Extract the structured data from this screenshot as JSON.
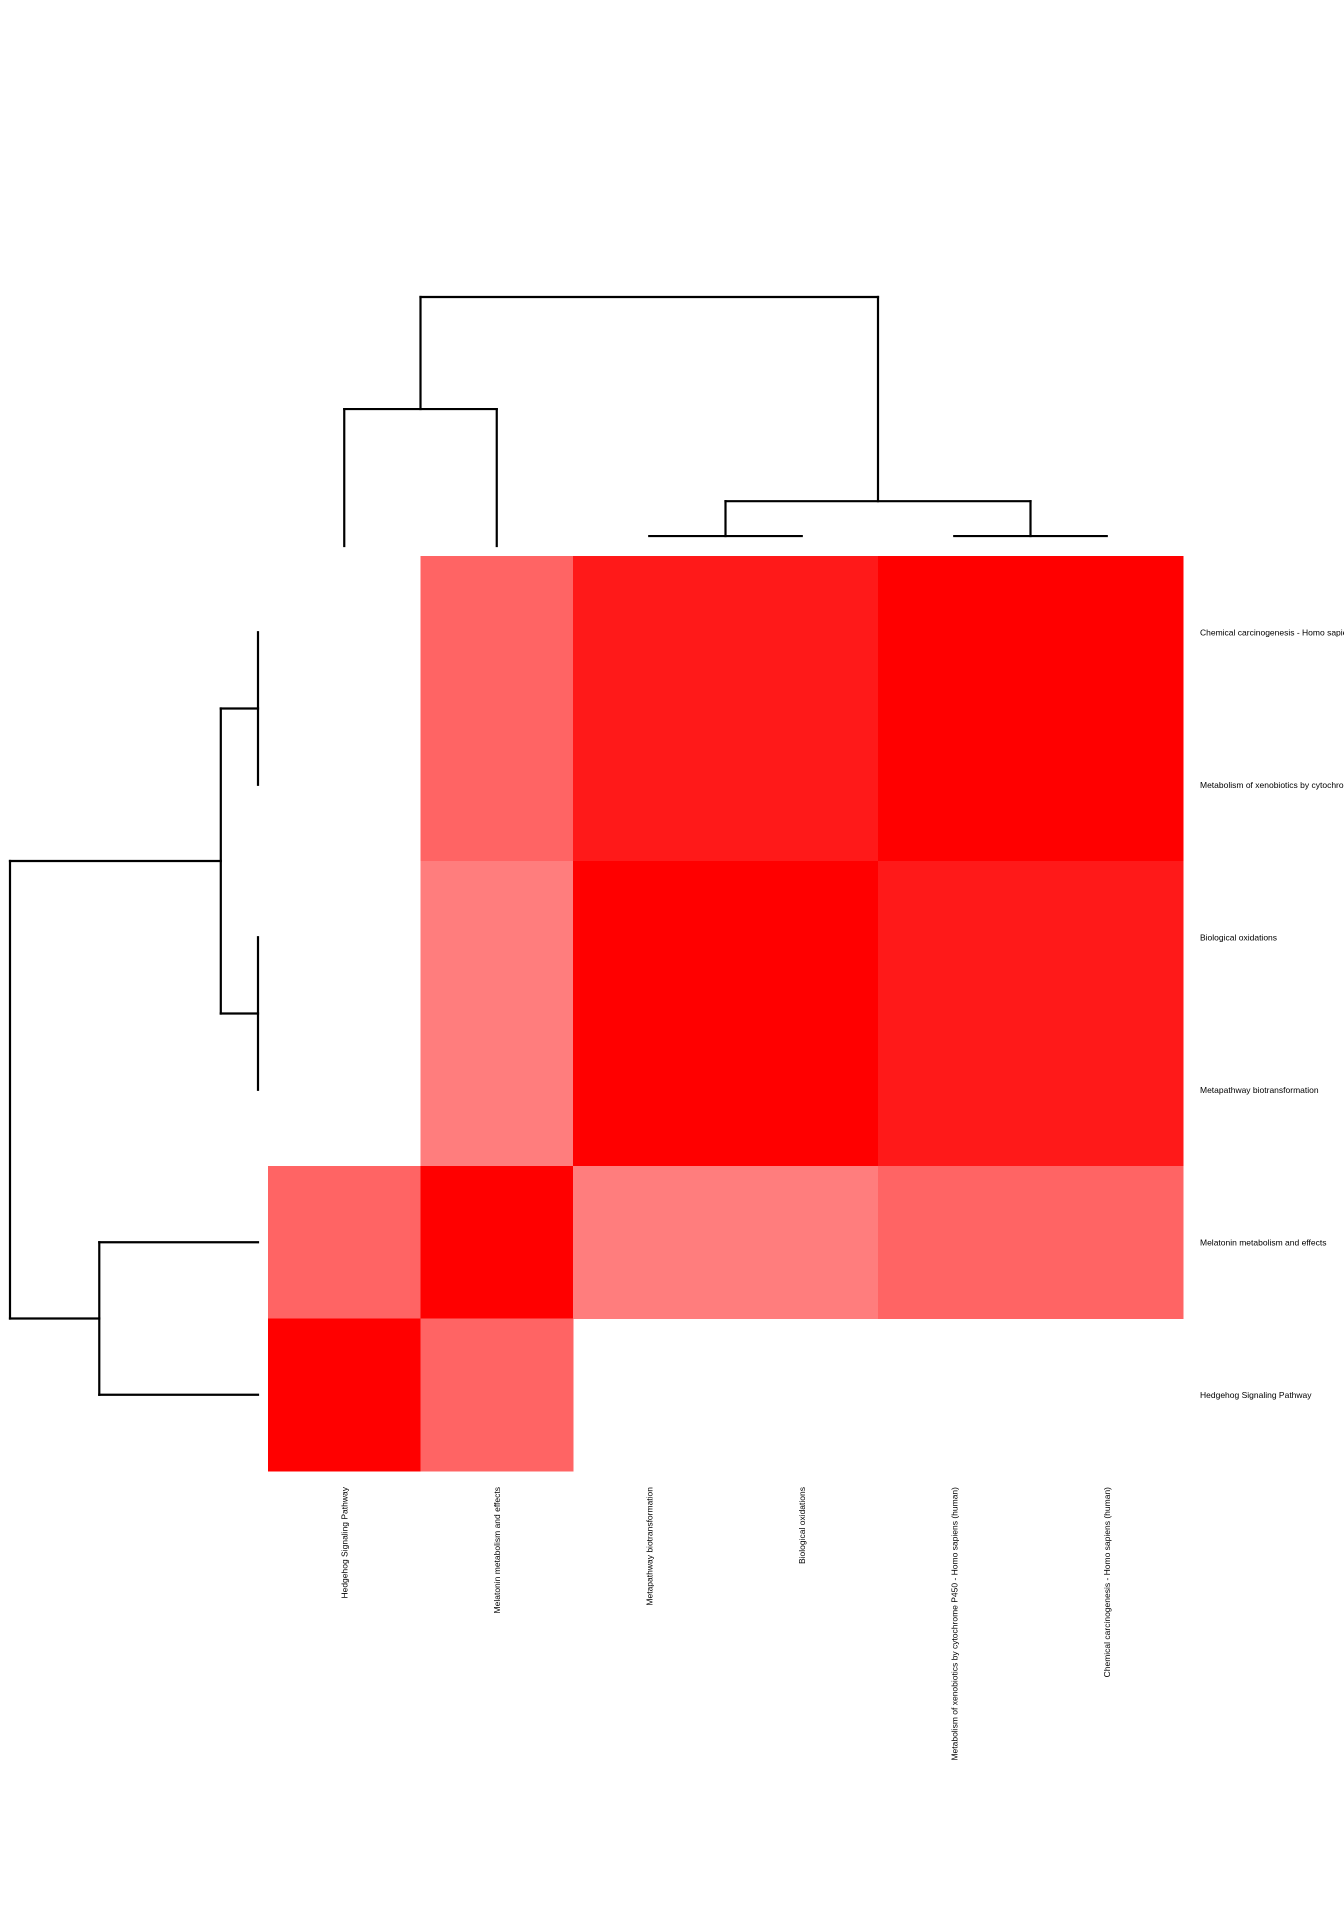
{
  "chart_data": {
    "type": "heatmap",
    "title": "",
    "xlabel": "",
    "ylabel": "",
    "grid": false,
    "legend": "none",
    "colors": {
      "background": "#ffffff",
      "high": "#ff0000",
      "low": "#ffffff",
      "dendrogram": "#000000"
    },
    "rows": [
      "Chemical carcinogenesis - Homo sapiens (human)",
      "Metabolism of xenobiotics by cytochrome P450 - Homo sapiens (human)",
      "Biological oxidations",
      "Metapathway biotransformation",
      "Melatonin metabolism and effects",
      "Hedgehog Signaling Pathway"
    ],
    "row_labels_shown": [
      "Chemical carcinogenesis - Homo sapiens",
      "Metabolism of xenobiotics by cytochrome",
      "Biological oxidations",
      "Metapathway biotransformation",
      "Melatonin metabolism and effects",
      "Hedgehog Signaling Pathway"
    ],
    "columns": [
      "Hedgehog Signaling Pathway",
      "Melatonin metabolism and effects",
      "Metapathway biotransformation",
      "Biological oxidations",
      "Metabolism of xenobiotics by cytochrome P450 - Homo sapiens (human)",
      "Chemical carcinogenesis - Homo sapiens (human)"
    ],
    "values": [
      [
        0.0,
        0.6,
        0.9,
        0.9,
        1.0,
        1.0
      ],
      [
        0.0,
        0.6,
        0.9,
        0.9,
        1.0,
        1.0
      ],
      [
        0.0,
        0.5,
        1.0,
        1.0,
        0.9,
        0.9
      ],
      [
        0.0,
        0.5,
        1.0,
        1.0,
        0.9,
        0.9
      ],
      [
        0.6,
        1.0,
        0.5,
        0.5,
        0.6,
        0.6
      ],
      [
        1.0,
        0.6,
        0.0,
        0.0,
        0.0,
        0.0
      ]
    ],
    "row_dendrogram": {
      "merges": [
        [
          0,
          1,
          0.22
        ],
        [
          2,
          3,
          0.22
        ],
        [
          4,
          5,
          0.55
        ],
        [
          "0-1",
          "2-3",
          0.18
        ],
        [
          "0-3",
          "4-5",
          0.98
        ]
      ]
    },
    "column_dendrogram": {
      "merges": [
        [
          2,
          3,
          0.05
        ],
        [
          4,
          5,
          0.05
        ],
        [
          0,
          1,
          0.55
        ],
        [
          "2-3",
          "4-5",
          0.18
        ],
        [
          "0-1",
          "2-5",
          1.0
        ]
      ]
    }
  }
}
